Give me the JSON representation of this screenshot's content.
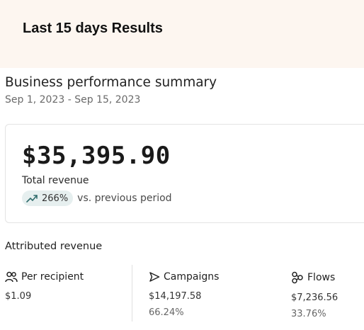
{
  "banner": {
    "title": "Last 15 days Results"
  },
  "summary": {
    "title": "Business performance summary",
    "date_range": "Sep 1, 2023 - Sep 15, 2023"
  },
  "revenue": {
    "amount": "$35,395.90",
    "label": "Total revenue",
    "change_pct": "266%",
    "change_text": "vs. previous period",
    "trend_icon": "trending-up-icon"
  },
  "attributed": {
    "title": "Attributed revenue",
    "per_recipient": {
      "label": "Per recipient",
      "value": "$1.09",
      "icon": "people-icon"
    },
    "campaigns": {
      "label": "Campaigns",
      "value": "$14,197.58",
      "share": "66.24%",
      "icon": "send-icon"
    },
    "flows": {
      "label": "Flows",
      "value": "$7,236.56",
      "share": "33.76%",
      "icon": "flow-icon"
    }
  },
  "colors": {
    "banner_bg": "#fdf6f0",
    "trend_pill_bg": "#e6efef",
    "trend_arrow": "#2f6b6b"
  }
}
